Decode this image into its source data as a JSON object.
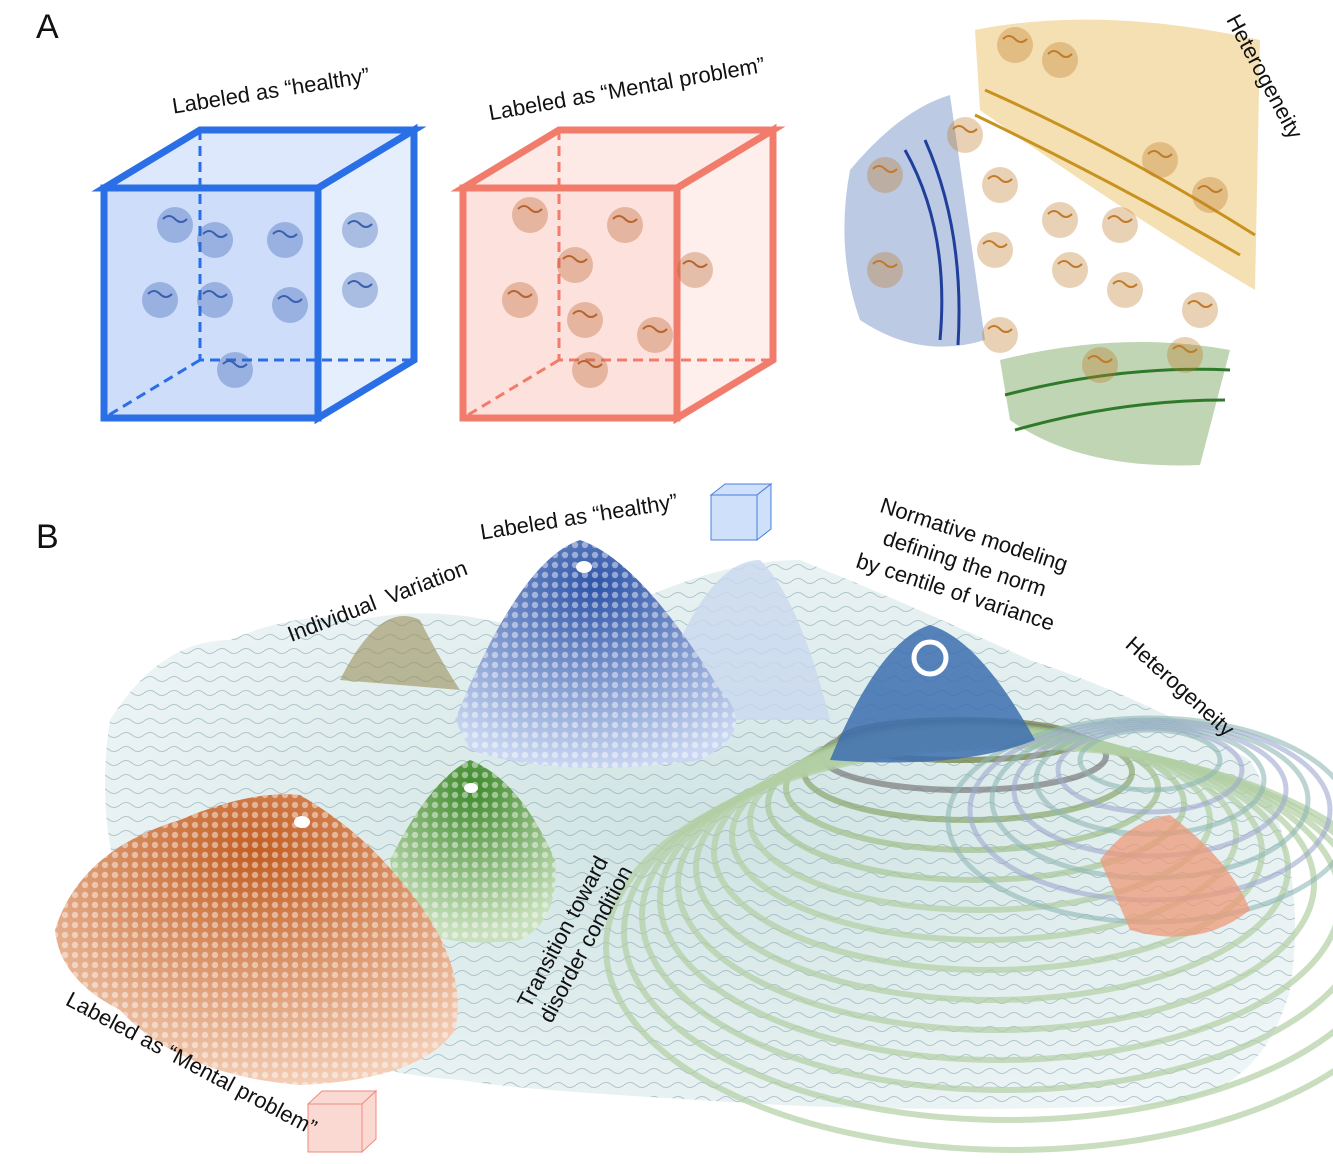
{
  "panel_a": {
    "label": "A",
    "cube_healthy": "Labeled as “healthy”",
    "cube_mental": "Labeled as “Mental problem”",
    "heterogeneity": "Heterogeneity"
  },
  "panel_b": {
    "label": "B",
    "healthy": "Labeled as “healthy”",
    "individual_variation": "Individual  Variation",
    "normative_modeling": [
      "Normative modeling",
      "defining the norm",
      "by centile of variance"
    ],
    "heterogeneity": "Heterogeneity",
    "transition": [
      "Transition toward",
      "disorder condition"
    ],
    "mental_problem": "Labeled as “Mental problem”"
  }
}
